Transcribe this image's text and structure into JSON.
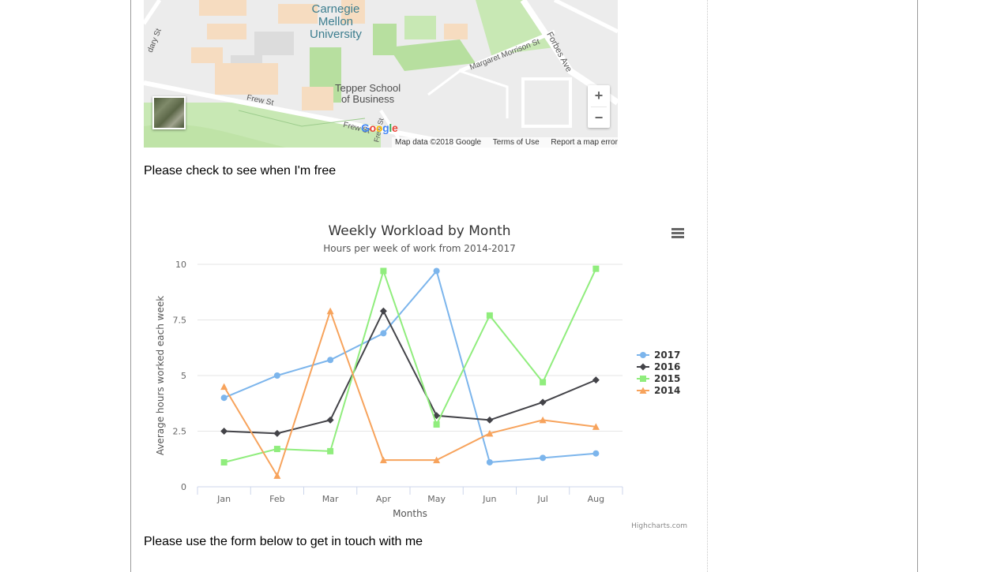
{
  "map": {
    "campus_label": [
      "Carnegie",
      "Mellon",
      "University"
    ],
    "school_label": [
      "Tepper School",
      "of Business"
    ],
    "streets": {
      "margaret": "Margaret Morrison St",
      "forbes": "Forbes Ave",
      "frew": "Frew St",
      "frew2": "Frew St",
      "frew3": "Frew St",
      "bounday": "dary St"
    },
    "zoom_in": "+",
    "zoom_out": "−",
    "google_logo": "Google",
    "attribution": {
      "data": "Map data ©2018 Google",
      "terms": "Terms of Use",
      "report": "Report a map error"
    }
  },
  "text": {
    "check_free": "Please check to see when I'm free",
    "contact": "Please use the form below to get in touch with me"
  },
  "chart_menu_icon": "hamburger-menu-icon",
  "chart_data": {
    "type": "line",
    "title": "Weekly Workload by Month",
    "subtitle": "Hours per week of work from 2014-2017",
    "xlabel": "Months",
    "ylabel": "Average hours worked each week",
    "categories": [
      "Jan",
      "Feb",
      "Mar",
      "Apr",
      "May",
      "Jun",
      "Jul",
      "Aug"
    ],
    "ylim": [
      0,
      10
    ],
    "yticks": [
      "0",
      "2.5",
      "5",
      "7.5",
      "10"
    ],
    "ytick_values": [
      0,
      2.5,
      5,
      7.5,
      10
    ],
    "legend_position": "right",
    "grid": true,
    "series": [
      {
        "name": "2017",
        "marker": "circle",
        "color": "#7cb5ec",
        "values": [
          4.0,
          5.0,
          5.7,
          6.9,
          9.7,
          1.1,
          1.3,
          1.5
        ]
      },
      {
        "name": "2016",
        "marker": "diamond",
        "color": "#434348",
        "values": [
          2.5,
          2.4,
          3.0,
          7.9,
          3.2,
          3.0,
          3.8,
          4.8
        ]
      },
      {
        "name": "2015",
        "marker": "square",
        "color": "#90ed7d",
        "values": [
          1.1,
          1.7,
          1.6,
          9.7,
          2.8,
          7.7,
          4.7,
          9.8
        ]
      },
      {
        "name": "2014",
        "marker": "triangle",
        "color": "#f7a35c",
        "values": [
          4.5,
          0.5,
          7.9,
          1.2,
          1.2,
          2.4,
          3.0,
          2.7
        ]
      }
    ],
    "credits": "Highcharts.com"
  }
}
